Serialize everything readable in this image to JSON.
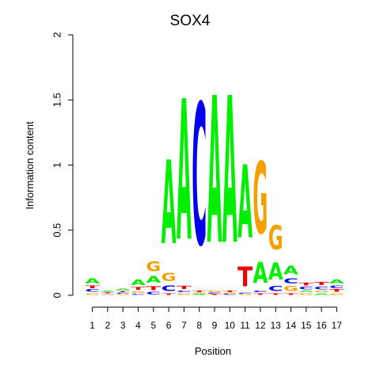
{
  "chart_data": {
    "type": "sequence-logo",
    "title": "SOX4",
    "xlabel": "Position",
    "ylabel": "Information content",
    "ylim": [
      0,
      2
    ],
    "yticks": [
      "0",
      "0.5",
      "1",
      "1.5",
      "2"
    ],
    "positions": [
      "1",
      "2",
      "3",
      "4",
      "5",
      "6",
      "7",
      "8",
      "9",
      "10",
      "11",
      "12",
      "13",
      "14",
      "15",
      "16",
      "17"
    ],
    "letter_colors": {
      "A": "#00ee00",
      "C": "#0000ee",
      "G": "#f5a000",
      "T": "#ee0000"
    },
    "stacks": [
      [
        [
          "A",
          0.06
        ],
        [
          "C",
          0.03
        ],
        [
          "G",
          0.02
        ],
        [
          "T",
          0.03
        ]
      ],
      [
        [
          "A",
          0.012
        ],
        [
          "C",
          0.008
        ],
        [
          "G",
          0.006
        ],
        [
          "T",
          0.01
        ]
      ],
      [
        [
          "A",
          0.02
        ],
        [
          "C",
          0.012
        ],
        [
          "G",
          0.01
        ],
        [
          "T",
          0.014
        ]
      ],
      [
        [
          "A",
          0.07
        ],
        [
          "T",
          0.03
        ],
        [
          "C",
          0.015
        ],
        [
          "G",
          0.02
        ]
      ],
      [
        [
          "G",
          0.12
        ],
        [
          "A",
          0.08
        ],
        [
          "T",
          0.05
        ],
        [
          "C",
          0.03
        ]
      ],
      [
        [
          "A",
          1.03
        ],
        [
          "G",
          0.1
        ],
        [
          "C",
          0.07
        ],
        [
          "T",
          0.02
        ]
      ],
      [
        [
          "A",
          1.73
        ],
        [
          "T",
          0.04
        ],
        [
          "G",
          0.02
        ],
        [
          "C",
          0.02
        ]
      ],
      [
        [
          "C",
          1.74
        ],
        [
          "T",
          0.02
        ],
        [
          "A",
          0.01
        ],
        [
          "G",
          0.01
        ]
      ],
      [
        [
          "A",
          1.81
        ],
        [
          "G",
          0.02
        ],
        [
          "T",
          0.01
        ],
        [
          "C",
          0.01
        ]
      ],
      [
        [
          "A",
          1.81
        ],
        [
          "T",
          0.02
        ],
        [
          "C",
          0.01
        ],
        [
          "G",
          0.01
        ]
      ],
      [
        [
          "A",
          0.9
        ],
        [
          "T",
          0.24
        ],
        [
          "G",
          0.01
        ],
        [
          "C",
          0.01
        ]
      ],
      [
        [
          "G",
          0.88
        ],
        [
          "A",
          0.26
        ],
        [
          "T",
          0.02
        ],
        [
          "C",
          0.02
        ]
      ],
      [
        [
          "G",
          0.3
        ],
        [
          "A",
          0.21
        ],
        [
          "C",
          0.06
        ],
        [
          "T",
          0.02
        ]
      ],
      [
        [
          "A",
          0.11
        ],
        [
          "G",
          0.06
        ],
        [
          "C",
          0.06
        ],
        [
          "T",
          0.02
        ]
      ],
      [
        [
          "C",
          0.03
        ],
        [
          "T",
          0.03
        ],
        [
          "G",
          0.02
        ],
        [
          "A",
          0.02
        ]
      ],
      [
        [
          "T",
          0.04
        ],
        [
          "C",
          0.03
        ],
        [
          "A",
          0.02
        ],
        [
          "G",
          0.02
        ]
      ],
      [
        [
          "A",
          0.05
        ],
        [
          "T",
          0.03
        ],
        [
          "C",
          0.03
        ],
        [
          "G",
          0.02
        ]
      ]
    ]
  }
}
